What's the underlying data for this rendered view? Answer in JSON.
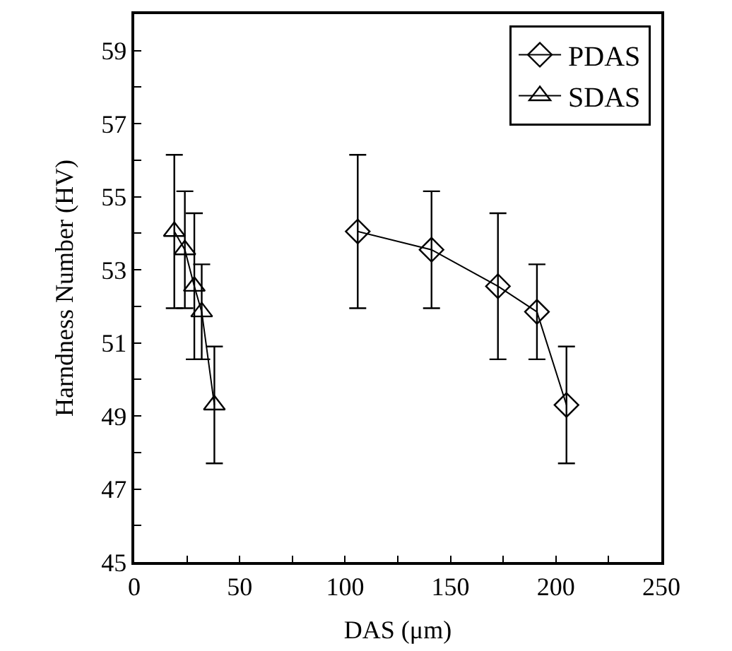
{
  "chart_data": {
    "type": "line",
    "xlabel": "DAS (μm)",
    "ylabel": "Harndness Number (HV)",
    "xlim": [
      0,
      250
    ],
    "xticks": [
      0,
      {
        "value": 25,
        "label": null
      },
      50,
      {
        "value": 75,
        "label": null
      },
      100,
      {
        "value": 125,
        "label": null
      },
      150,
      {
        "value": 175,
        "label": null
      },
      200,
      {
        "value": 225,
        "label": null
      },
      250
    ],
    "ylim": [
      45,
      60
    ],
    "yticks": [
      45,
      {
        "value": 46,
        "label": null
      },
      47,
      {
        "value": 48,
        "label": null
      },
      49,
      {
        "value": 50,
        "label": null
      },
      51,
      {
        "value": 52,
        "label": null
      },
      53,
      {
        "value": 54,
        "label": null
      },
      55,
      {
        "value": 56,
        "label": null
      },
      57,
      {
        "value": 58,
        "label": null
      },
      59,
      {
        "value": 60,
        "label": null
      }
    ],
    "legend": "top right",
    "line_style": "solid",
    "series": [
      {
        "name": "PDAS",
        "color": "#000000",
        "marker": "diamond",
        "x": [
          106,
          141,
          172.5,
          191,
          205
        ],
        "values": [
          54.05,
          53.55,
          52.55,
          51.85,
          49.3
        ],
        "errors": [
          2.1,
          1.6,
          2.0,
          1.3,
          1.6
        ]
      },
      {
        "name": "SDAS",
        "color": "#000000",
        "marker": "triangle",
        "x": [
          19,
          24,
          28.5,
          32,
          38
        ],
        "values": [
          54.05,
          53.55,
          52.55,
          51.85,
          49.3
        ],
        "errors": [
          2.1,
          1.6,
          2.0,
          1.3,
          1.6
        ]
      }
    ]
  }
}
